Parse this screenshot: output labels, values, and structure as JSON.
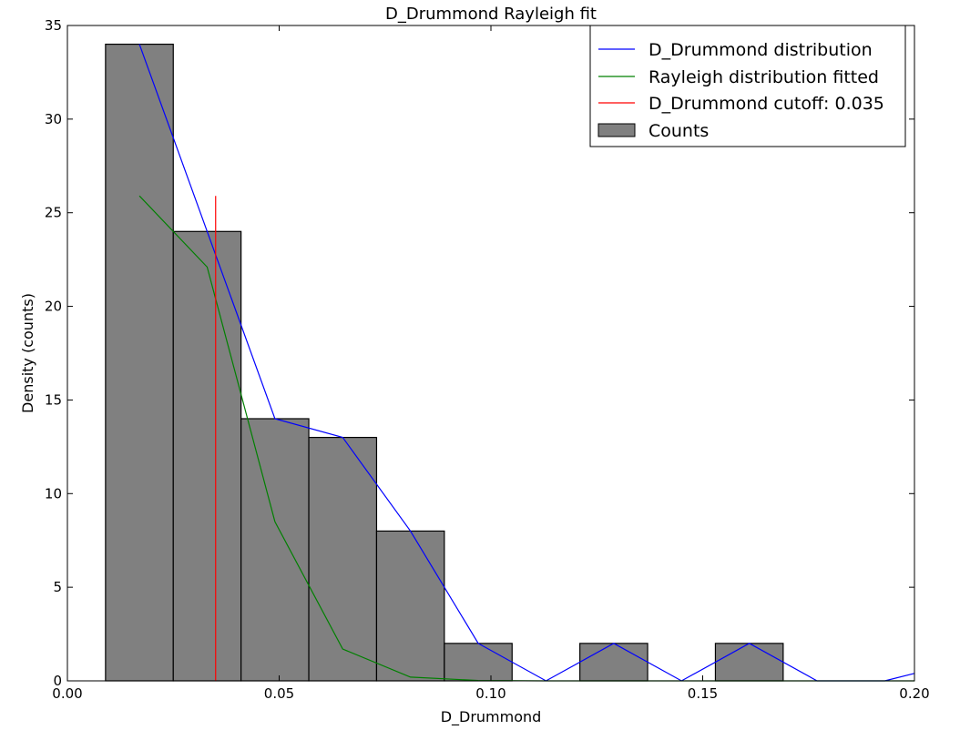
{
  "chart_data": {
    "type": "bar",
    "title": "D_Drummond Rayleigh fit",
    "xlabel": "D_Drummond",
    "ylabel": "Density (counts)",
    "xlim": [
      0.0,
      0.2
    ],
    "ylim": [
      0,
      35
    ],
    "xticks": [
      0.0,
      0.05,
      0.1,
      0.15,
      0.2
    ],
    "xtick_labels": [
      "0.00",
      "0.05",
      "0.10",
      "0.15",
      "0.20"
    ],
    "yticks": [
      0,
      5,
      10,
      15,
      20,
      25,
      30,
      35
    ],
    "ytick_labels": [
      "0",
      "5",
      "10",
      "15",
      "20",
      "25",
      "30",
      "35"
    ],
    "grid": false,
    "legend_position": "top-right",
    "bars": {
      "name": "Counts",
      "color": "#808080",
      "edge_color": "#000000",
      "bin_edges": [
        0.009,
        0.025,
        0.041,
        0.057,
        0.073,
        0.089,
        0.105,
        0.121,
        0.137,
        0.153,
        0.169
      ],
      "values": [
        34,
        24,
        14,
        13,
        8,
        2,
        0,
        2,
        0,
        2
      ]
    },
    "series": [
      {
        "name": "D_Drummond distribution",
        "color": "#0000ff",
        "x": [
          0.017,
          0.033,
          0.049,
          0.065,
          0.081,
          0.097,
          0.113,
          0.129,
          0.145,
          0.161,
          0.177,
          0.193,
          0.2
        ],
        "y": [
          34,
          24,
          14,
          13,
          8,
          2,
          0,
          2,
          0,
          2,
          0,
          0,
          0.4
        ]
      },
      {
        "name": "Rayleigh distribution fitted",
        "color": "#008000",
        "x": [
          0.017,
          0.033,
          0.049,
          0.065,
          0.081,
          0.097,
          0.113,
          0.129,
          0.145,
          0.161,
          0.177,
          0.193,
          0.2
        ],
        "y": [
          25.9,
          22.1,
          8.5,
          1.7,
          0.2,
          0.02,
          0,
          0,
          0,
          0,
          0,
          0,
          0
        ]
      },
      {
        "name": "D_Drummond cutoff: 0.035",
        "color": "#ff0000",
        "x": [
          0.035,
          0.035
        ],
        "y": [
          0,
          25.9
        ]
      }
    ]
  }
}
